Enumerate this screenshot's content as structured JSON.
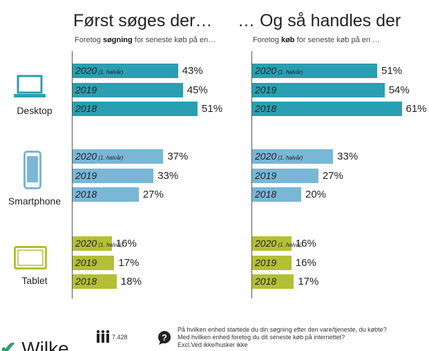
{
  "chart_data": {
    "type": "bar",
    "panels": [
      {
        "title": "Først søges der…",
        "subtitle_pre": "Foretog ",
        "subtitle_bold": "søgning",
        "subtitle_post": " for seneste køb på en…"
      },
      {
        "title": "… Og så handles der",
        "subtitle_pre": "Foretog ",
        "subtitle_bold": "køb",
        "subtitle_post": " for seneste køb på en …"
      }
    ],
    "year_labels": [
      "2020",
      "2019",
      "2018"
    ],
    "half_year_note": "(1. halvår)",
    "devices": [
      {
        "name": "Desktop",
        "icon": "laptop-icon",
        "color": "#2a9fb1",
        "search": [
          43,
          45,
          51
        ],
        "purchase": [
          51,
          54,
          61
        ]
      },
      {
        "name": "Smartphone",
        "icon": "smartphone-icon",
        "color": "#7ab6d6",
        "search": [
          37,
          33,
          27
        ],
        "purchase": [
          33,
          27,
          20
        ]
      },
      {
        "name": "Tablet",
        "icon": "tablet-icon",
        "color": "#b4bf36",
        "search": [
          16,
          17,
          18
        ],
        "purchase": [
          16,
          16,
          17
        ]
      }
    ],
    "unit": "%"
  },
  "footer": {
    "respondents": "7.428",
    "question1": "På hvilken enhed startede du din søgning efter den vare/tjeneste, du købte?",
    "question2": "Med hvilken enhed foretog du dit seneste køb på internettet?",
    "note": "Excl.Ved ikke/husker ikke",
    "logo": "Wilke"
  }
}
